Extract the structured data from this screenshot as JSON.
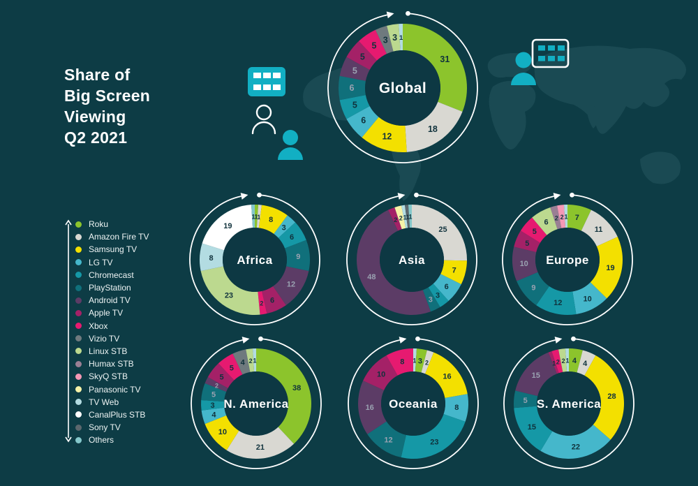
{
  "title": {
    "lines": [
      "Share of",
      "Big Screen",
      "Viewing",
      "Q2 2021"
    ]
  },
  "colors": {
    "background": "#0d3c45",
    "map": "#1a4a53",
    "accent": "#12afc3",
    "ring": "#ffffff",
    "hole": "#0d3843",
    "center_label": "#ffffff",
    "label_dark": "#10323c",
    "label_light": "#9aa2b1",
    "legend_text": "#eef4f4"
  },
  "palette": {
    "Roku": "#8cc42c",
    "Amazon Fire TV": "#d9d8d2",
    "Samsung TV": "#f3e000",
    "LG TV": "#45b7cb",
    "Chromecast": "#1598a6",
    "PlayStation": "#10707b",
    "Android TV": "#5c3c66",
    "Apple TV": "#a42167",
    "Xbox": "#e61a70",
    "Vizio TV": "#6f7a7e",
    "Linux STB": "#bcd98f",
    "Humax STB": "#9a7f94",
    "SkyQ STB": "#f598b5",
    "Panasonic TV": "#f6f2a8",
    "TV Web": "#b3dce2",
    "CanalPlus STB": "#ffffff",
    "Sony TV": "#5c676d",
    "Others": "#85c8cb"
  },
  "light_label_platforms": [
    "Android TV",
    "PlayStation"
  ],
  "legend": {
    "items": [
      "Roku",
      "Amazon Fire TV",
      "Samsung TV",
      "LG TV",
      "Chromecast",
      "PlayStation",
      "Android TV",
      "Apple TV",
      "Xbox",
      "Vizio TV",
      "Linux STB",
      "Humax STB",
      "SkyQ STB",
      "Panasonic TV",
      "TV Web",
      "CanalPlus STB",
      "Sony TV",
      "Others"
    ]
  },
  "icons": {
    "left_screen": "screen-grid-filled-icon",
    "left_person_outline": "person-outline-icon",
    "left_person_filled": "person-filled-icon",
    "right_person_filled": "person-filled-icon",
    "right_screen": "screen-grid-outline-icon"
  },
  "chart_data": [
    {
      "type": "pie",
      "title": "Global",
      "unit": "% share",
      "segments": [
        {
          "name": "Roku",
          "value": 31
        },
        {
          "name": "Amazon Fire TV",
          "value": 18
        },
        {
          "name": "Samsung TV",
          "value": 12
        },
        {
          "name": "LG TV",
          "value": 6
        },
        {
          "name": "Chromecast",
          "value": 5
        },
        {
          "name": "PlayStation",
          "value": 6
        },
        {
          "name": "Android TV",
          "value": 5
        },
        {
          "name": "Apple TV",
          "value": 5
        },
        {
          "name": "Xbox",
          "value": 5
        },
        {
          "name": "Vizio TV",
          "value": 3
        },
        {
          "name": "Linux STB",
          "value": 3
        },
        {
          "name": "TV Web",
          "value": 1
        }
      ]
    },
    {
      "type": "pie",
      "title": "Africa",
      "unit": "% share",
      "segments": [
        {
          "name": "Roku",
          "value": 1
        },
        {
          "name": "Amazon Fire TV",
          "value": 1
        },
        {
          "name": "Samsung TV",
          "value": 8
        },
        {
          "name": "LG TV",
          "value": 3
        },
        {
          "name": "Chromecast",
          "value": 6
        },
        {
          "name": "PlayStation",
          "value": 9
        },
        {
          "name": "Android TV",
          "value": 12
        },
        {
          "name": "Apple TV",
          "value": 6
        },
        {
          "name": "Xbox",
          "value": 2
        },
        {
          "name": "Linux STB",
          "value": 23
        },
        {
          "name": "TV Web",
          "value": 8
        },
        {
          "name": "CanalPlus STB",
          "value": 19
        },
        {
          "name": "Others",
          "value": 1
        }
      ]
    },
    {
      "type": "pie",
      "title": "Asia",
      "unit": "% share",
      "segments": [
        {
          "name": "Amazon Fire TV",
          "value": 25
        },
        {
          "name": "Samsung TV",
          "value": 7
        },
        {
          "name": "LG TV",
          "value": 6
        },
        {
          "name": "Chromecast",
          "value": 3
        },
        {
          "name": "PlayStation",
          "value": 3
        },
        {
          "name": "Android TV",
          "value": 48
        },
        {
          "name": "Apple TV",
          "value": 2
        },
        {
          "name": "Panasonic TV",
          "value": 2
        },
        {
          "name": "TV Web",
          "value": 1
        },
        {
          "name": "Sony TV",
          "value": 1
        },
        {
          "name": "Others",
          "value": 1
        }
      ]
    },
    {
      "type": "pie",
      "title": "Europe",
      "unit": "% share",
      "segments": [
        {
          "name": "Roku",
          "value": 7
        },
        {
          "name": "Amazon Fire TV",
          "value": 11
        },
        {
          "name": "Samsung TV",
          "value": 19
        },
        {
          "name": "LG TV",
          "value": 10
        },
        {
          "name": "Chromecast",
          "value": 12
        },
        {
          "name": "PlayStation",
          "value": 9
        },
        {
          "name": "Android TV",
          "value": 10
        },
        {
          "name": "Apple TV",
          "value": 5
        },
        {
          "name": "Xbox",
          "value": 5
        },
        {
          "name": "Linux STB",
          "value": 6
        },
        {
          "name": "Humax STB",
          "value": 2
        },
        {
          "name": "SkyQ STB",
          "value": 2
        },
        {
          "name": "TV Web",
          "value": 1
        }
      ]
    },
    {
      "type": "pie",
      "title": "N. America",
      "unit": "% share",
      "segments": [
        {
          "name": "Roku",
          "value": 38
        },
        {
          "name": "Amazon Fire TV",
          "value": 21
        },
        {
          "name": "Samsung TV",
          "value": 10
        },
        {
          "name": "LG TV",
          "value": 4
        },
        {
          "name": "Chromecast",
          "value": 3
        },
        {
          "name": "PlayStation",
          "value": 5
        },
        {
          "name": "Android TV",
          "value": 2
        },
        {
          "name": "Apple TV",
          "value": 5
        },
        {
          "name": "Xbox",
          "value": 5
        },
        {
          "name": "Vizio TV",
          "value": 4
        },
        {
          "name": "Linux STB",
          "value": 2
        },
        {
          "name": "TV Web",
          "value": 1
        }
      ]
    },
    {
      "type": "pie",
      "title": "Oceania",
      "unit": "% share",
      "segments": [
        {
          "name": "TV Web",
          "value": 1
        },
        {
          "name": "Roku",
          "value": 3
        },
        {
          "name": "Amazon Fire TV",
          "value": 2
        },
        {
          "name": "Samsung TV",
          "value": 16
        },
        {
          "name": "LG TV",
          "value": 8
        },
        {
          "name": "Chromecast",
          "value": 23
        },
        {
          "name": "PlayStation",
          "value": 12
        },
        {
          "name": "Android TV",
          "value": 16
        },
        {
          "name": "Apple TV",
          "value": 10
        },
        {
          "name": "Xbox",
          "value": 8
        }
      ]
    },
    {
      "type": "pie",
      "title": "S. America",
      "unit": "% share",
      "segments": [
        {
          "name": "Roku",
          "value": 4
        },
        {
          "name": "Amazon Fire TV",
          "value": 4
        },
        {
          "name": "Samsung TV",
          "value": 28
        },
        {
          "name": "LG TV",
          "value": 22
        },
        {
          "name": "Chromecast",
          "value": 15
        },
        {
          "name": "PlayStation",
          "value": 5
        },
        {
          "name": "Android TV",
          "value": 15
        },
        {
          "name": "Apple TV",
          "value": 1
        },
        {
          "name": "Xbox",
          "value": 2
        },
        {
          "name": "Linux STB",
          "value": 2
        },
        {
          "name": "TV Web",
          "value": 1
        }
      ]
    }
  ]
}
